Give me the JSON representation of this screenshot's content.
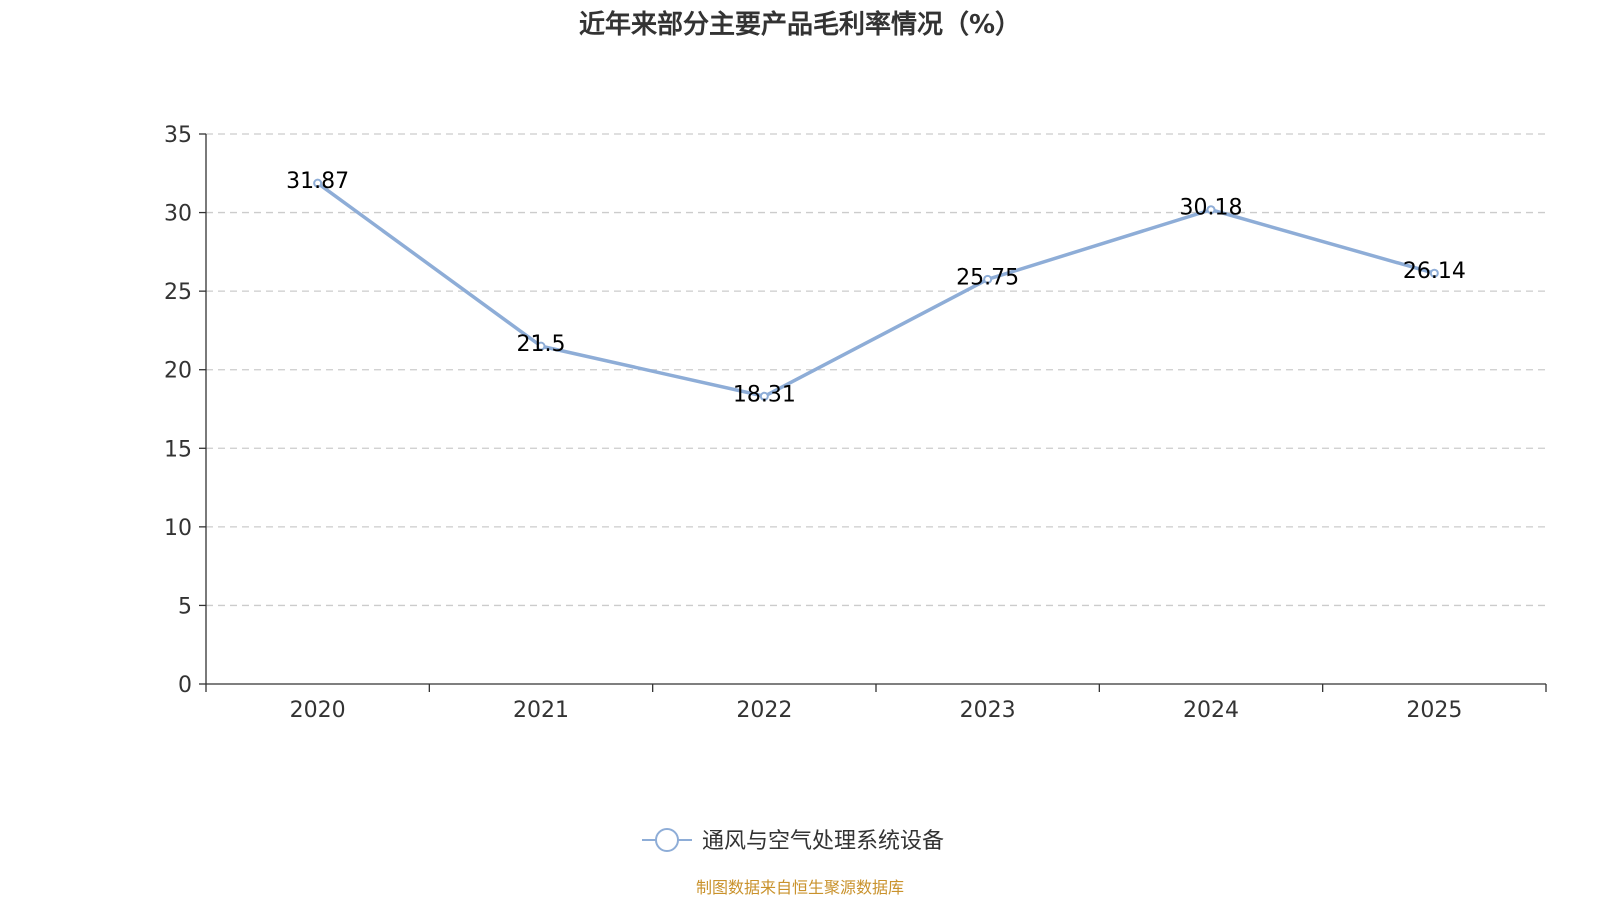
{
  "chart_data": {
    "type": "line",
    "title": "近年来部分主要产品毛利率情况（%）",
    "categories": [
      "2020",
      "2021",
      "2022",
      "2023",
      "2024",
      "2025"
    ],
    "series": [
      {
        "name": "通风与空气处理系统设备",
        "values": [
          31.87,
          21.5,
          18.31,
          25.75,
          30.18,
          26.14
        ],
        "labels": [
          "31.87",
          "21.5",
          "18.31",
          "25.75",
          "30.18",
          "26.14"
        ]
      }
    ],
    "yticks": [
      "0",
      "5",
      "10",
      "15",
      "20",
      "25",
      "30",
      "35"
    ],
    "ylim": [
      0,
      35
    ],
    "xlabel": "",
    "ylabel": "",
    "grid": true,
    "legend_position": "bottom-center"
  },
  "source_text": "制图数据来自恒生聚源数据库",
  "colors": {
    "series": "#8eadd7",
    "grid": "#cccccc",
    "axis": "#333333",
    "source": "#c9922c"
  }
}
